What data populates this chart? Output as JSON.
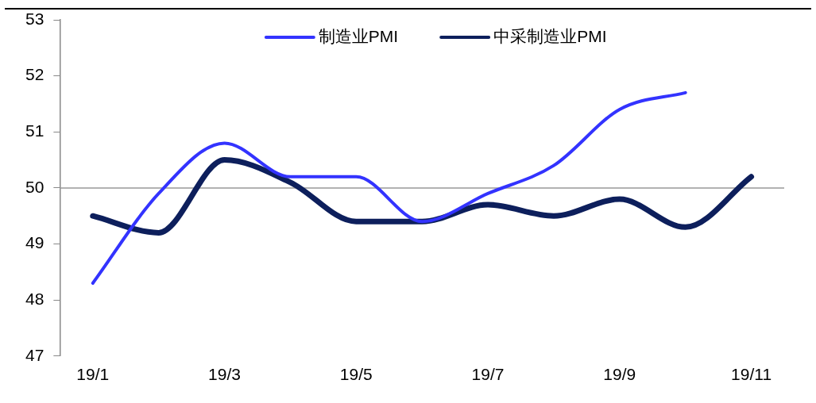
{
  "chart_data": {
    "type": "line",
    "categories": [
      "19/1",
      null,
      "19/3",
      null,
      "19/5",
      null,
      "19/7",
      null,
      "19/9",
      null,
      "19/11"
    ],
    "series": [
      {
        "name": "制造业PMI",
        "color": "#3333ff",
        "values": [
          48.3,
          49.9,
          50.8,
          50.2,
          50.2,
          49.4,
          49.9,
          50.4,
          51.4,
          51.7,
          null
        ]
      },
      {
        "name": "中采制造业PMI",
        "color": "#0d1f5c",
        "values": [
          49.5,
          49.2,
          50.5,
          50.1,
          49.4,
          49.4,
          49.7,
          49.5,
          49.8,
          49.3,
          50.2
        ]
      }
    ],
    "ylim": [
      47,
      53
    ],
    "yticks": [
      47,
      48,
      49,
      50,
      51,
      52,
      53
    ],
    "grid": false,
    "legend": "top",
    "marker": "none",
    "line_style": "solid",
    "ref_lines": [
      {
        "axis": "y",
        "value": 50,
        "color": "#999999"
      }
    ]
  }
}
